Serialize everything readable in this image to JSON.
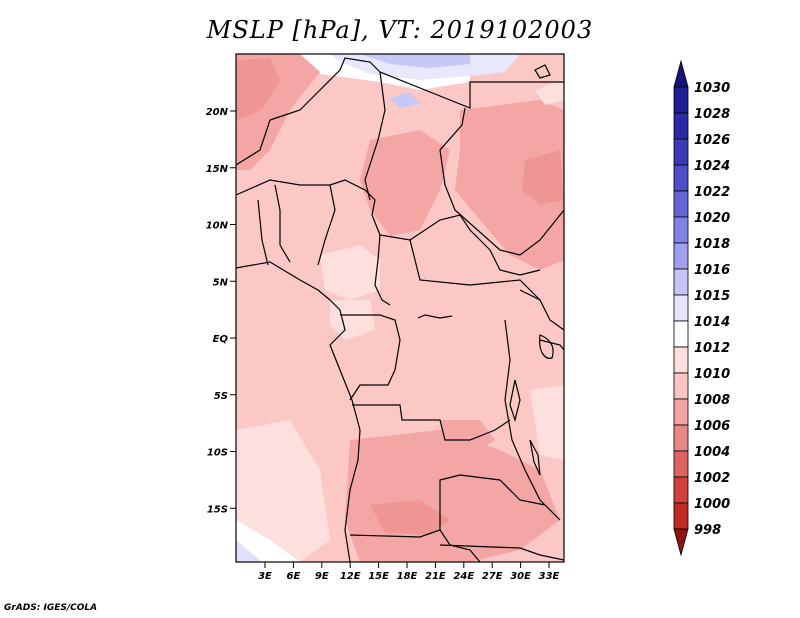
{
  "title": "MSLP [hPa], VT: 2019102003",
  "credit": "GrADS: IGES/COLA",
  "map": {
    "lat_ticks": [
      "20N",
      "15N",
      "10N",
      "5N",
      "EQ",
      "5S",
      "10S",
      "15S"
    ],
    "lon_ticks": [
      "3E",
      "6E",
      "9E",
      "12E",
      "15E",
      "18E",
      "21E",
      "24E",
      "27E",
      "30E",
      "33E"
    ]
  },
  "colorbar": {
    "levels": [
      {
        "label": "1030",
        "color": "#1e1e96"
      },
      {
        "label": "1028",
        "color": "#2a2aa8"
      },
      {
        "label": "1026",
        "color": "#3a3ab8"
      },
      {
        "label": "1024",
        "color": "#4e4ec8"
      },
      {
        "label": "1022",
        "color": "#6666d8"
      },
      {
        "label": "1020",
        "color": "#8282e6"
      },
      {
        "label": "1018",
        "color": "#a0a0f0"
      },
      {
        "label": "1016",
        "color": "#c4c4f8"
      },
      {
        "label": "1015",
        "color": "#e4e4fc"
      },
      {
        "label": "1014",
        "color": "#ffffff"
      },
      {
        "label": "1012",
        "color": "#fde0de"
      },
      {
        "label": "1010",
        "color": "#fbc4c2"
      },
      {
        "label": "1008",
        "color": "#f4a4a2"
      },
      {
        "label": "1006",
        "color": "#e88886"
      },
      {
        "label": "1004",
        "color": "#de6462"
      },
      {
        "label": "1002",
        "color": "#d2403c"
      },
      {
        "label": "1000",
        "color": "#c22a26"
      },
      {
        "label": "998",
        "color": "#a81e1a"
      }
    ],
    "top_arrow_color": "#14147e",
    "bottom_arrow_color": "#8e1410"
  }
}
